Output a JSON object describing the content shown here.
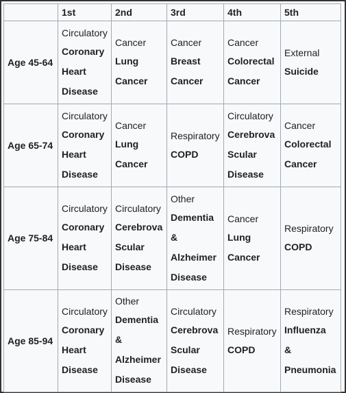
{
  "table": {
    "header": [
      "1st",
      "2nd",
      "3rd",
      "4th",
      "5th"
    ],
    "rows": [
      {
        "label": "Age 45-64",
        "cells": [
          {
            "category": "Circulatory",
            "name": [
              "Coronary",
              "Heart",
              "Disease"
            ]
          },
          {
            "category": "Cancer",
            "name": [
              "Lung",
              "Cancer"
            ]
          },
          {
            "category": "Cancer",
            "name": [
              "Breast",
              "Cancer"
            ]
          },
          {
            "category": "Cancer",
            "name": [
              "Colorectal",
              "Cancer"
            ]
          },
          {
            "category": "External",
            "name": [
              "Suicide"
            ]
          }
        ]
      },
      {
        "label": "Age 65-74",
        "cells": [
          {
            "category": "Circulatory",
            "name": [
              "Coronary",
              "Heart",
              "Disease"
            ]
          },
          {
            "category": "Cancer",
            "name": [
              "Lung",
              "Cancer"
            ]
          },
          {
            "category": "Respiratory",
            "name": [
              "COPD"
            ]
          },
          {
            "category": "Circulatory",
            "name": [
              "Cerebrova",
              "Scular",
              "Disease"
            ]
          },
          {
            "category": "Cancer",
            "name": [
              "Colorectal",
              "Cancer"
            ]
          }
        ]
      },
      {
        "label": "Age 75-84",
        "cells": [
          {
            "category": "Circulatory",
            "name": [
              "Coronary",
              "Heart",
              "Disease"
            ]
          },
          {
            "category": "Circulatory",
            "name": [
              "Cerebrova",
              "Scular",
              "Disease"
            ]
          },
          {
            "category": "Other",
            "name": [
              "Dementia",
              "&",
              "Alzheimer",
              "Disease"
            ]
          },
          {
            "category": "Cancer",
            "name": [
              "Lung",
              "Cancer"
            ]
          },
          {
            "category": "Respiratory",
            "name": [
              "COPD"
            ]
          }
        ]
      },
      {
        "label": "Age 85-94",
        "cells": [
          {
            "category": "Circulatory",
            "name": [
              "Coronary",
              "Heart",
              "Disease"
            ]
          },
          {
            "category": "Other",
            "name": [
              "Dementia",
              "&",
              "Alzheimer",
              "Disease"
            ]
          },
          {
            "category": "Circulatory",
            "name": [
              "Cerebrova",
              "Scular",
              "Disease"
            ]
          },
          {
            "category": "Respiratory",
            "name": [
              "COPD"
            ]
          },
          {
            "category": "Respiratory",
            "name": [
              "Influenza",
              "&",
              "Pneumonia"
            ]
          }
        ]
      }
    ]
  }
}
